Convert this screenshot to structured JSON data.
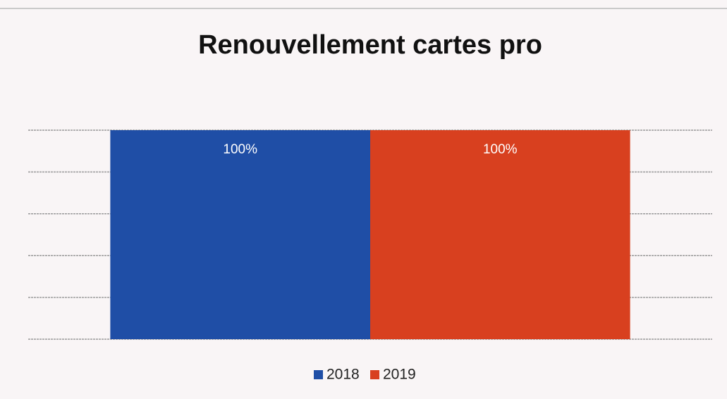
{
  "chart_data": {
    "type": "bar",
    "title": "Renouvellement cartes pro",
    "categories": [
      null
    ],
    "series": [
      {
        "name": "2018",
        "color": "#1f4ea6",
        "values": [
          100
        ],
        "value_labels": [
          "100%"
        ]
      },
      {
        "name": "2019",
        "color": "#d8401f",
        "values": [
          100
        ],
        "value_labels": [
          "100%"
        ]
      }
    ],
    "ylim": [
      0,
      100
    ],
    "yticks": [
      0,
      20,
      40,
      60,
      80,
      100
    ],
    "grid": true,
    "legend": "bottom"
  }
}
